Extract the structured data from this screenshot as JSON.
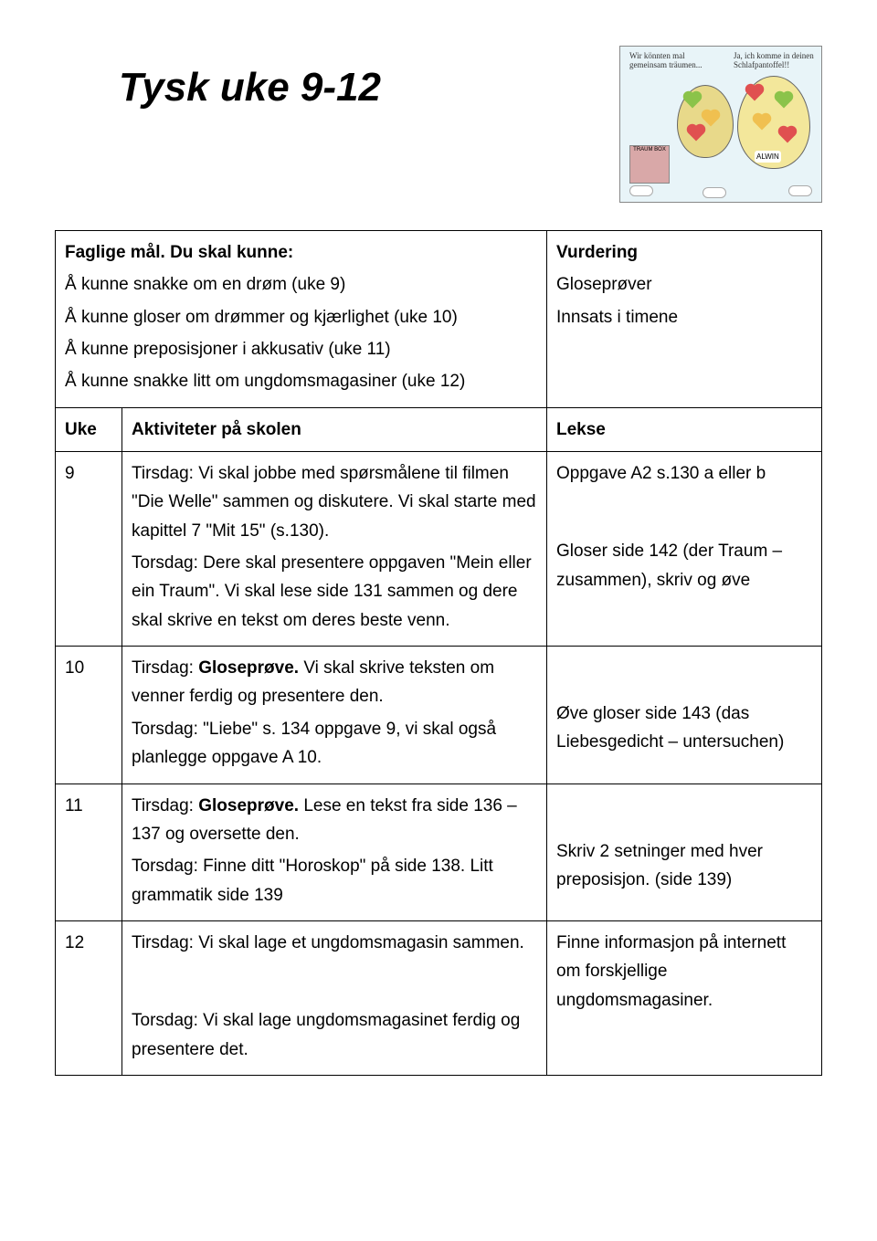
{
  "title": "Tysk uke 9-12",
  "illustration": {
    "speech1": "Wir könnten mal gemeinsam träumen...",
    "speech2": "Ja, ich komme in deinen Schlafpantoffel!!",
    "box_label": "TRAUM BOX",
    "egg2_label": "ALWIN"
  },
  "goals": {
    "heading": "Faglige mål. Du skal kunne:",
    "items": [
      "Å kunne snakke om en drøm (uke 9)",
      "Å kunne gloser om drømmer og kjærlighet (uke 10)",
      "Å kunne preposisjoner i akkusativ (uke 11)",
      "Å kunne snakke litt om ungdomsmagasiner (uke 12)"
    ],
    "vurdering_heading": "Vurdering",
    "vurdering_items": [
      "Gloseprøver",
      "Innsats i timene"
    ]
  },
  "table": {
    "head_uke": "Uke",
    "head_akt": "Aktiviteter på skolen",
    "head_lekse": "Lekse",
    "rows": [
      {
        "uke": "9",
        "akt_parts": [
          {
            "text": "Tirsdag: Vi skal jobbe med spørsmålene til filmen \"Die Welle\" sammen og diskutere. Vi skal starte med kapittel 7 \"Mit 15\" (s.130)."
          },
          {
            "text": "Torsdag: Dere skal presentere oppgaven \"Mein eller ein Traum\". Vi skal lese side 131 sammen og dere skal skrive en tekst om deres beste venn."
          }
        ],
        "lekse_parts": [
          {
            "text": "Oppgave A2 s.130 a eller b"
          },
          {
            "spacer": true
          },
          {
            "text": "Gloser side 142 (der Traum – zusammen), skriv og øve"
          }
        ]
      },
      {
        "uke": "10",
        "akt_parts": [
          {
            "prefix": "Tirsdag: ",
            "bold": "Gloseprøve.",
            "text": " Vi skal skrive teksten om venner ferdig og presentere den."
          },
          {
            "text": "Torsdag: \"Liebe\" s. 134 oppgave 9, vi skal også planlegge oppgave A 10."
          }
        ],
        "lekse_parts": [
          {
            "spacer": true
          },
          {
            "text": "Øve gloser side 143 (das Liebesgedicht – untersuchen)"
          }
        ]
      },
      {
        "uke": "11",
        "akt_parts": [
          {
            "prefix": "Tirsdag: ",
            "bold": "Gloseprøve.",
            "text": " Lese en tekst fra side 136 – 137 og oversette den."
          },
          {
            "text": "Torsdag: Finne ditt \"Horoskop\" på side 138. Litt grammatik side 139"
          }
        ],
        "lekse_parts": [
          {
            "spacer": true
          },
          {
            "text": "Skriv 2 setninger med hver preposisjon. (side 139)"
          }
        ]
      },
      {
        "uke": "12",
        "akt_parts": [
          {
            "text": "Tirsdag: Vi skal lage et ungdomsmagasin sammen."
          },
          {
            "spacer": true
          },
          {
            "text": "Torsdag: Vi skal lage ungdomsmagasinet ferdig og presentere det."
          }
        ],
        "lekse_parts": [
          {
            "text": "Finne informasjon på internett om forskjellige ungdomsmagasiner."
          }
        ]
      }
    ]
  }
}
